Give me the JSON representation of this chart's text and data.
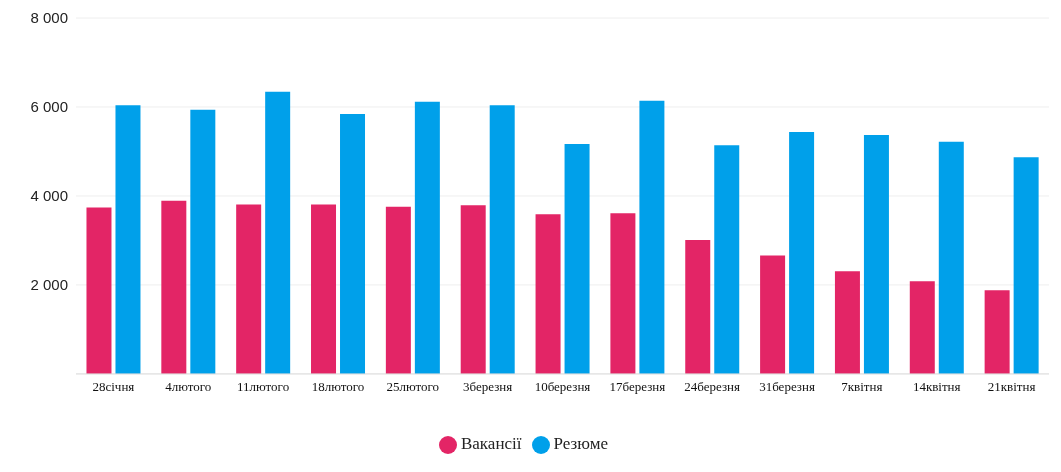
{
  "chart_data": {
    "type": "bar",
    "categories": [
      "28січня",
      "4лютого",
      "11лютого",
      "18лютого",
      "25лютого",
      "3березня",
      "10березня",
      "17березня",
      "24березня",
      "31березня",
      "7квітня",
      "14квітня",
      "21квітня"
    ],
    "series": [
      {
        "name": "Вакансії",
        "color": "#e32566",
        "values": [
          3740,
          3890,
          3810,
          3810,
          3760,
          3790,
          3590,
          3610,
          3010,
          2660,
          2310,
          2080,
          1880
        ]
      },
      {
        "name": "Резюме",
        "color": "#00a0ea",
        "values": [
          6040,
          5940,
          6340,
          5840,
          6120,
          6040,
          5170,
          6140,
          5140,
          5440,
          5370,
          5220,
          4870
        ]
      }
    ],
    "ylim": [
      0,
      8000
    ],
    "yticks": [
      {
        "value": 2000,
        "label": "2 000"
      },
      {
        "value": 4000,
        "label": "4 000"
      },
      {
        "value": 6000,
        "label": "6 000"
      },
      {
        "value": 8000,
        "label": "8 000"
      }
    ],
    "grid": "y",
    "legend": "bottom"
  }
}
